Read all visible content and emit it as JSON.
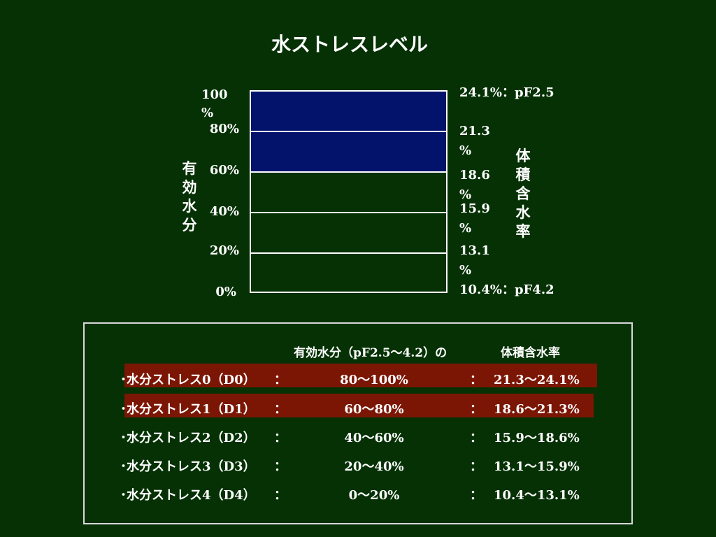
{
  "title": "水ストレスレベル",
  "colors": {
    "background": "#053105",
    "gauge_fill_stress": "#03136b",
    "highlight_row": "#7b1605",
    "line": "#ffffff"
  },
  "gauge": {
    "filled_fraction": 0.6,
    "left_axis_label": [
      "有",
      "効",
      "水",
      "分"
    ],
    "right_axis_label": [
      "体",
      "積",
      "含",
      "水",
      "率"
    ],
    "left_ticks": [
      {
        "line1": "100",
        "line2": "%"
      },
      {
        "line1": "80%",
        "line2": ""
      },
      {
        "line1": "60%",
        "line2": ""
      },
      {
        "line1": "40%",
        "line2": ""
      },
      {
        "line1": "20%",
        "line2": ""
      },
      {
        "line1": "0%",
        "line2": ""
      }
    ],
    "right_ticks": [
      {
        "line1": "24.1%：pF2.5",
        "line2": ""
      },
      {
        "line1": "21.3",
        "line2": "%"
      },
      {
        "line1": "18.6",
        "line2": "%"
      },
      {
        "line1": "15.9",
        "line2": "%"
      },
      {
        "line1": "13.1",
        "line2": "%"
      },
      {
        "line1": "10.4%：pF4.2",
        "line2": ""
      }
    ]
  },
  "table": {
    "header_available": "有効水分（pF2.5～4.2）の",
    "header_volumetric": "体積含水率",
    "rows": [
      {
        "name": "･水分ストレス0（D0）",
        "sep1": "：",
        "available": "80～100%",
        "sep2": "：",
        "volumetric": "21.3～24.1%",
        "highlight": true
      },
      {
        "name": "･水分ストレス1（D1）",
        "sep1": "：",
        "available": "60～80%",
        "sep2": "：",
        "volumetric": "18.6～21.3%",
        "highlight": true
      },
      {
        "name": "･水分ストレス2（D2）",
        "sep1": "：",
        "available": "40～60%",
        "sep2": "：",
        "volumetric": "15.9～18.6%",
        "highlight": false
      },
      {
        "name": "･水分ストレス3（D3）",
        "sep1": "：",
        "available": "20～40%",
        "sep2": "：",
        "volumetric": "13.1～15.9%",
        "highlight": false
      },
      {
        "name": "･水分ストレス4（D4）",
        "sep1": "：",
        "available": "0～20%",
        "sep2": "：",
        "volumetric": "10.4～13.1%",
        "highlight": false
      }
    ]
  }
}
